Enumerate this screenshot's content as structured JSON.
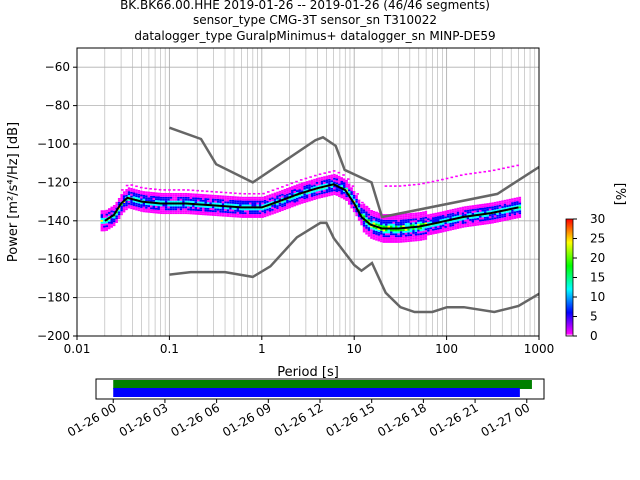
{
  "title_lines": [
    "BK.BK66.00.HHE   2019-01-26 -- 2019-01-26  (46/46 segments)",
    "sensor_type CMG-3T sensor_sn T310022",
    "datalogger_type GuralpMinimus+ datalogger_sn MINP-DE59"
  ],
  "chart_data": [
    {
      "type": "heatmap",
      "title": "BK.BK66.00.HHE   2019-01-26 -- 2019-01-26  (46/46 segments)",
      "xlabel": "Period [s]",
      "ylabel": "Power [m²/s⁴/Hz] [dB]",
      "xscale": "log",
      "xlim": [
        0.01,
        1000
      ],
      "ylim": [
        -200,
        -50
      ],
      "x_ticks": [
        0.01,
        0.1,
        1,
        10,
        100,
        1000
      ],
      "x_tick_labels": [
        "0.01",
        "0.1",
        "1",
        "10",
        "100",
        "1000"
      ],
      "y_ticks": [
        -200,
        -180,
        -160,
        -140,
        -120,
        -100,
        -80,
        -60
      ],
      "grid": true,
      "colorbar": {
        "label": "[%]",
        "range": [
          0,
          30
        ],
        "ticks": [
          0,
          5,
          10,
          15,
          20,
          25,
          30
        ],
        "colors": [
          "#ff00ff",
          "#0000ff",
          "#00ffff",
          "#00ff00",
          "#ffff00",
          "#ff0000"
        ]
      },
      "series": [
        {
          "role": "mode-median",
          "x": [
            0.02,
            0.025,
            0.03,
            0.035,
            0.05,
            0.08,
            0.15,
            0.3,
            0.6,
            1.0,
            1.5,
            2.5,
            4,
            6,
            8,
            10,
            12,
            15,
            20,
            30,
            50,
            80,
            150,
            300,
            600
          ],
          "y": [
            -140,
            -137,
            -131,
            -128,
            -130,
            -131,
            -131,
            -132,
            -133,
            -133,
            -130,
            -126,
            -123,
            -121,
            -124,
            -131,
            -138,
            -142,
            -144,
            -144,
            -143,
            -141,
            -138,
            -136,
            -133
          ]
        },
        {
          "role": "noise-model-upper",
          "x": [
            0.1,
            0.22,
            0.32,
            0.8,
            3.8,
            4.6,
            6.3,
            7.9,
            15.4,
            20,
            354.8,
            1000
          ],
          "y": [
            -91.5,
            -97.4,
            -110.5,
            -120,
            -98,
            -96.5,
            -101,
            -113.5,
            -120,
            -138,
            -126,
            -112
          ]
        },
        {
          "role": "noise-model-lower",
          "x": [
            0.1,
            0.17,
            0.4,
            0.8,
            1.24,
            2.4,
            4.3,
            5,
            6,
            10,
            12,
            15.6,
            21.9,
            31.6,
            45,
            70,
            101,
            154,
            328,
            600,
            1000
          ],
          "y": [
            -168,
            -166.7,
            -166.7,
            -169.2,
            -163.7,
            -148.6,
            -141.1,
            -141.1,
            -149,
            -163,
            -166,
            -162,
            -177.5,
            -185,
            -187.5,
            -187.5,
            -185,
            -185,
            -187.5,
            -184.4,
            -178
          ]
        }
      ]
    },
    {
      "type": "timeline",
      "x_tick_labels": [
        "01-26 00",
        "01-26 03",
        "01-26 06",
        "01-26 09",
        "01-26 12",
        "01-26 15",
        "01-26 18",
        "01-26 21",
        "01-27 00"
      ],
      "xlim_hours": [
        -1,
        25
      ],
      "bars": [
        {
          "name": "data",
          "start_hour": 0,
          "end_hour": 24.3,
          "color": "#008000"
        },
        {
          "name": "psd",
          "start_hour": 0,
          "end_hour": 23.6,
          "color": "#0000ff"
        }
      ]
    }
  ]
}
